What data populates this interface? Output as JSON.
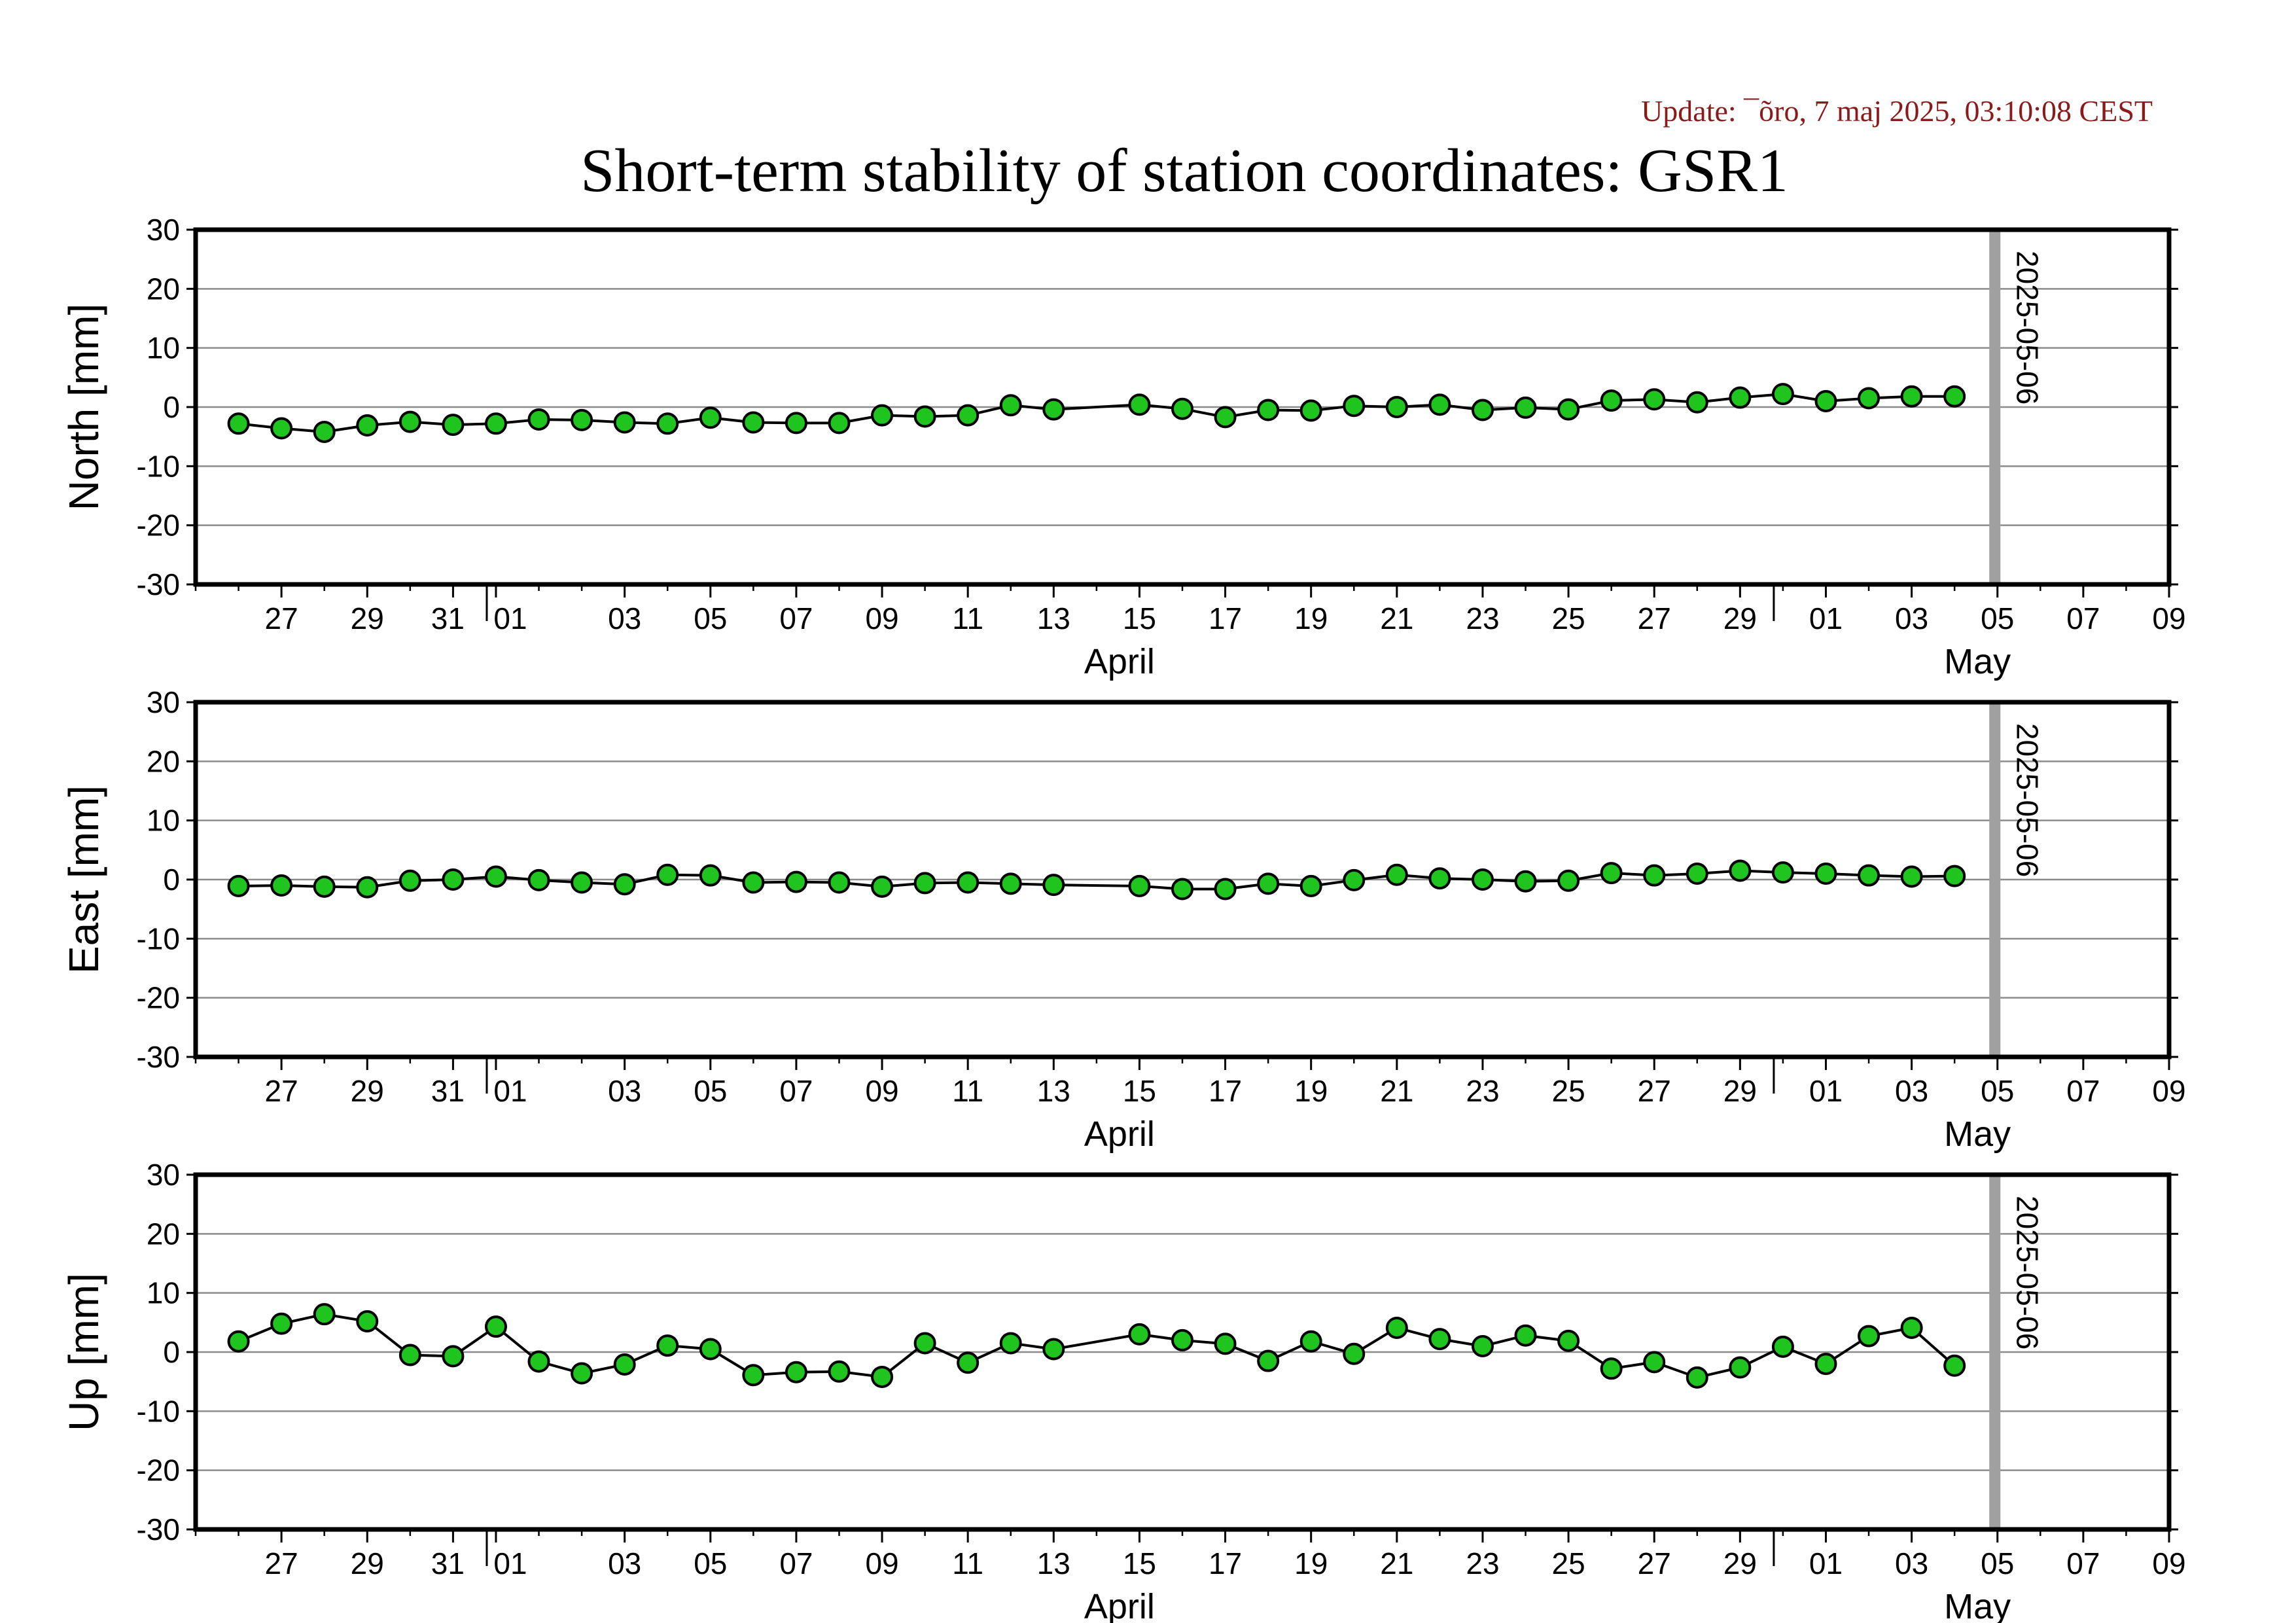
{
  "header": {
    "update": "Update: ¯õro, 7 maj 2025, 03:10:08 CEST",
    "title": "Short-term stability of station coordinates: GSR1"
  },
  "chart_data": [
    {
      "type": "line",
      "ylabel": "North [mm]",
      "ylim": [
        -30,
        30
      ],
      "yticks": [
        30,
        20,
        10,
        0,
        -10,
        -20,
        -30
      ],
      "xlim": [
        "2025-03-25",
        "2025-05-10"
      ],
      "x_tick_labels": [
        "27",
        "29",
        "31",
        "01",
        "03",
        "05",
        "07",
        "09",
        "11",
        "13",
        "15",
        "17",
        "19",
        "21",
        "23",
        "25",
        "27",
        "29",
        "01",
        "03",
        "05",
        "07",
        "09"
      ],
      "months": [
        "April",
        "May"
      ],
      "grid": true,
      "marker_label": "2025-05-06",
      "marker_date": "2025-05-06",
      "marker_color": "#a0a0a0",
      "point_color": "#1fc41f",
      "series": [
        {
          "x": [
            "2025-03-26",
            "2025-03-27",
            "2025-03-28",
            "2025-03-29",
            "2025-03-30",
            "2025-03-31",
            "2025-04-01",
            "2025-04-02",
            "2025-04-03",
            "2025-04-04",
            "2025-04-05",
            "2025-04-06",
            "2025-04-07",
            "2025-04-08",
            "2025-04-09",
            "2025-04-10",
            "2025-04-11",
            "2025-04-12",
            "2025-04-13",
            "2025-04-14",
            "2025-04-16",
            "2025-04-17",
            "2025-04-18",
            "2025-04-19",
            "2025-04-20",
            "2025-04-21",
            "2025-04-22",
            "2025-04-23",
            "2025-04-24",
            "2025-04-25",
            "2025-04-26",
            "2025-04-27",
            "2025-04-28",
            "2025-04-29",
            "2025-04-30",
            "2025-05-01",
            "2025-05-02",
            "2025-05-03",
            "2025-05-04",
            "2025-05-05"
          ],
          "values": [
            -2.8,
            -3.6,
            -4.2,
            -3.1,
            -2.5,
            -3.0,
            -2.8,
            -2.1,
            -2.2,
            -2.6,
            -2.8,
            -1.8,
            -2.6,
            -2.7,
            -2.7,
            -1.4,
            -1.6,
            -1.4,
            0.3,
            -0.4,
            0.4,
            -0.3,
            -1.7,
            -0.5,
            -0.6,
            0.2,
            0.0,
            0.4,
            -0.5,
            -0.1,
            -0.4,
            1.1,
            1.3,
            0.8,
            1.6,
            2.2,
            1.0,
            1.5,
            1.8,
            1.8
          ]
        }
      ]
    },
    {
      "type": "line",
      "ylabel": "East [mm]",
      "ylim": [
        -30,
        30
      ],
      "yticks": [
        30,
        20,
        10,
        0,
        -10,
        -20,
        -30
      ],
      "xlim": [
        "2025-03-25",
        "2025-05-10"
      ],
      "x_tick_labels": [
        "27",
        "29",
        "31",
        "01",
        "03",
        "05",
        "07",
        "09",
        "11",
        "13",
        "15",
        "17",
        "19",
        "21",
        "23",
        "25",
        "27",
        "29",
        "01",
        "03",
        "05",
        "07",
        "09"
      ],
      "months": [
        "April",
        "May"
      ],
      "grid": true,
      "marker_label": "2025-05-06",
      "marker_date": "2025-05-06",
      "marker_color": "#a0a0a0",
      "point_color": "#1fc41f",
      "series": [
        {
          "x": [
            "2025-03-26",
            "2025-03-27",
            "2025-03-28",
            "2025-03-29",
            "2025-03-30",
            "2025-03-31",
            "2025-04-01",
            "2025-04-02",
            "2025-04-03",
            "2025-04-04",
            "2025-04-05",
            "2025-04-06",
            "2025-04-07",
            "2025-04-08",
            "2025-04-09",
            "2025-04-10",
            "2025-04-11",
            "2025-04-12",
            "2025-04-13",
            "2025-04-14",
            "2025-04-16",
            "2025-04-17",
            "2025-04-18",
            "2025-04-19",
            "2025-04-20",
            "2025-04-21",
            "2025-04-22",
            "2025-04-23",
            "2025-04-24",
            "2025-04-25",
            "2025-04-26",
            "2025-04-27",
            "2025-04-28",
            "2025-04-29",
            "2025-04-30",
            "2025-05-01",
            "2025-05-02",
            "2025-05-03",
            "2025-05-04",
            "2025-05-05"
          ],
          "values": [
            -1.1,
            -1.0,
            -1.2,
            -1.3,
            -0.2,
            0.0,
            0.5,
            -0.1,
            -0.5,
            -0.8,
            0.8,
            0.7,
            -0.5,
            -0.4,
            -0.5,
            -1.2,
            -0.6,
            -0.5,
            -0.7,
            -0.9,
            -1.1,
            -1.6,
            -1.6,
            -0.7,
            -1.1,
            -0.1,
            0.8,
            0.2,
            0.0,
            -0.3,
            -0.2,
            1.1,
            0.7,
            1.0,
            1.5,
            1.2,
            1.0,
            0.7,
            0.5,
            0.6
          ]
        }
      ]
    },
    {
      "type": "line",
      "ylabel": "Up [mm]",
      "ylim": [
        -30,
        30
      ],
      "yticks": [
        30,
        20,
        10,
        0,
        -10,
        -20,
        -30
      ],
      "xlim": [
        "2025-03-25",
        "2025-05-10"
      ],
      "x_tick_labels": [
        "27",
        "29",
        "31",
        "01",
        "03",
        "05",
        "07",
        "09",
        "11",
        "13",
        "15",
        "17",
        "19",
        "21",
        "23",
        "25",
        "27",
        "29",
        "01",
        "03",
        "05",
        "07",
        "09"
      ],
      "months": [
        "April",
        "May"
      ],
      "grid": true,
      "marker_label": "2025-05-06",
      "marker_date": "2025-05-06",
      "marker_color": "#a0a0a0",
      "point_color": "#1fc41f",
      "series": [
        {
          "x": [
            "2025-03-26",
            "2025-03-27",
            "2025-03-28",
            "2025-03-29",
            "2025-03-30",
            "2025-03-31",
            "2025-04-01",
            "2025-04-02",
            "2025-04-03",
            "2025-04-04",
            "2025-04-05",
            "2025-04-06",
            "2025-04-07",
            "2025-04-08",
            "2025-04-09",
            "2025-04-10",
            "2025-04-11",
            "2025-04-12",
            "2025-04-13",
            "2025-04-14",
            "2025-04-16",
            "2025-04-17",
            "2025-04-18",
            "2025-04-19",
            "2025-04-20",
            "2025-04-21",
            "2025-04-22",
            "2025-04-23",
            "2025-04-24",
            "2025-04-25",
            "2025-04-26",
            "2025-04-27",
            "2025-04-28",
            "2025-04-29",
            "2025-04-30",
            "2025-05-01",
            "2025-05-02",
            "2025-05-03",
            "2025-05-04",
            "2025-05-05"
          ],
          "values": [
            1.8,
            4.8,
            6.4,
            5.2,
            -0.5,
            -0.7,
            4.3,
            -1.6,
            -3.6,
            -2.1,
            1.1,
            0.5,
            -3.9,
            -3.4,
            -3.3,
            -4.2,
            1.5,
            -1.8,
            1.5,
            0.5,
            3.0,
            2.0,
            1.4,
            -1.5,
            1.8,
            -0.3,
            4.1,
            2.2,
            1.0,
            2.8,
            1.9,
            -2.8,
            -1.7,
            -4.3,
            -2.6,
            0.9,
            -2.0,
            2.7,
            4.1,
            -2.3
          ]
        }
      ]
    }
  ]
}
